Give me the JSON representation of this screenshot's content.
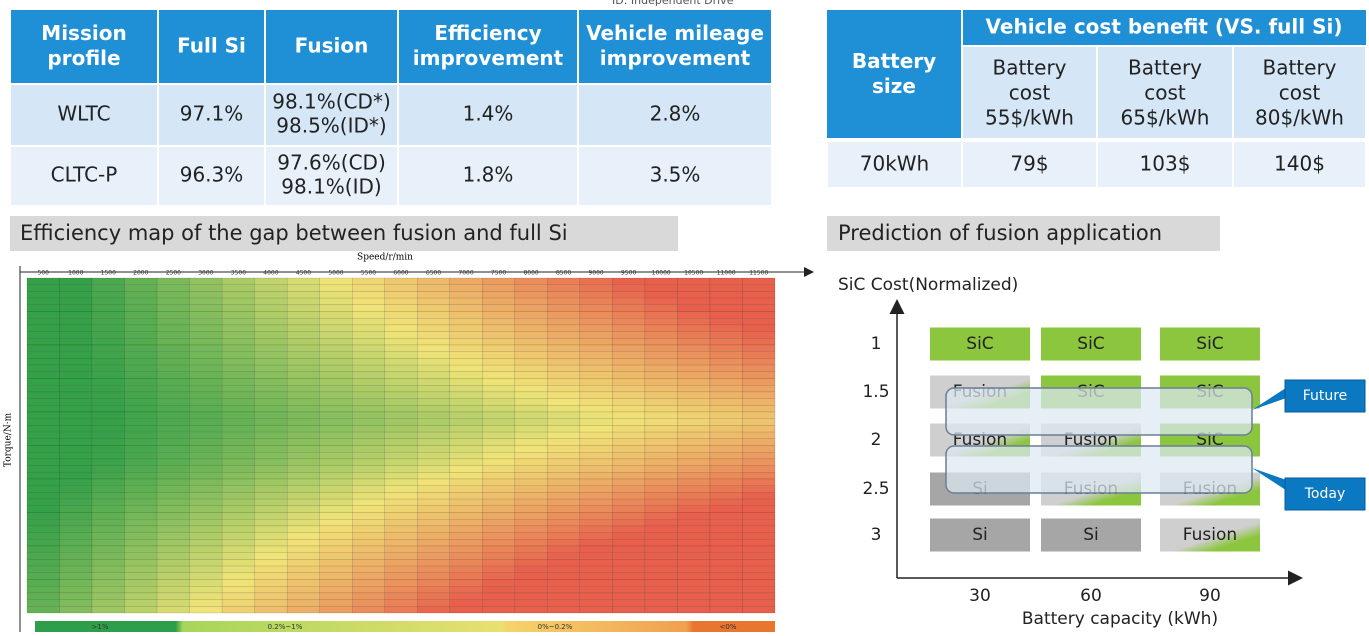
{
  "note": "ID: Independent Drive",
  "table1": {
    "header": [
      [
        "Mission",
        "profile"
      ],
      [
        "Full Si"
      ],
      [
        "Fusion"
      ],
      [
        "Efficiency",
        "improvement"
      ],
      [
        "Vehicle  mileage",
        "improvement"
      ]
    ],
    "rows": [
      [
        [
          "WLTC"
        ],
        [
          "97.1%"
        ],
        [
          "98.1%(CD*)",
          "98.5%(ID*)"
        ],
        [
          "1.4%"
        ],
        [
          "2.8%"
        ]
      ],
      [
        [
          "CLTC-P"
        ],
        [
          "96.3%"
        ],
        [
          "97.6%(CD)",
          "98.1%(ID)"
        ],
        [
          "1.8%"
        ],
        [
          "3.5%"
        ]
      ]
    ]
  },
  "table2": {
    "corner": [
      "Battery",
      "size"
    ],
    "group": "Vehicle cost benefit  (VS. full Si)",
    "columns": [
      [
        "Battery",
        "cost",
        "55$/kWh"
      ],
      [
        "Battery",
        "cost",
        "65$/kWh"
      ],
      [
        "Battery",
        "cost",
        "80$/kWh"
      ]
    ],
    "rows": [
      [
        "70kWh",
        "79$",
        "103$",
        "140$"
      ]
    ]
  },
  "heatmap": {
    "title": "Efficiency map of the gap between fusion and full Si",
    "x_label": "Speed/r/min",
    "y_label": "Torque/N·m",
    "speeds": [
      500,
      1000,
      1500,
      2000,
      2500,
      3000,
      3500,
      4000,
      4500,
      5000,
      5500,
      6000,
      6500,
      7000,
      7500,
      8000,
      8500,
      9000,
      9500,
      10000,
      10500,
      11000,
      11500
    ],
    "legend": [
      ">1%",
      "0.2%~1%",
      "0%~0.2%",
      "<0%"
    ]
  },
  "prediction": {
    "title": "Prediction of fusion application",
    "y_label": "SiC Cost(Normalized)",
    "x_label": "Battery capacity (kWh)",
    "y_ticks": [
      "1",
      "1.5",
      "2",
      "2.5",
      "3"
    ],
    "x_ticks": [
      "30",
      "60",
      "90"
    ],
    "cells": [
      [
        "SiC",
        "SiC",
        "SiC"
      ],
      [
        "Fusion",
        "SiC",
        "SiC"
      ],
      [
        "Fusion",
        "Fusion",
        "SiC"
      ],
      [
        "Si",
        "Fusion",
        "Fusion"
      ],
      [
        "Si",
        "Si",
        "Fusion"
      ]
    ],
    "callouts": [
      "Future",
      "Today"
    ]
  }
}
